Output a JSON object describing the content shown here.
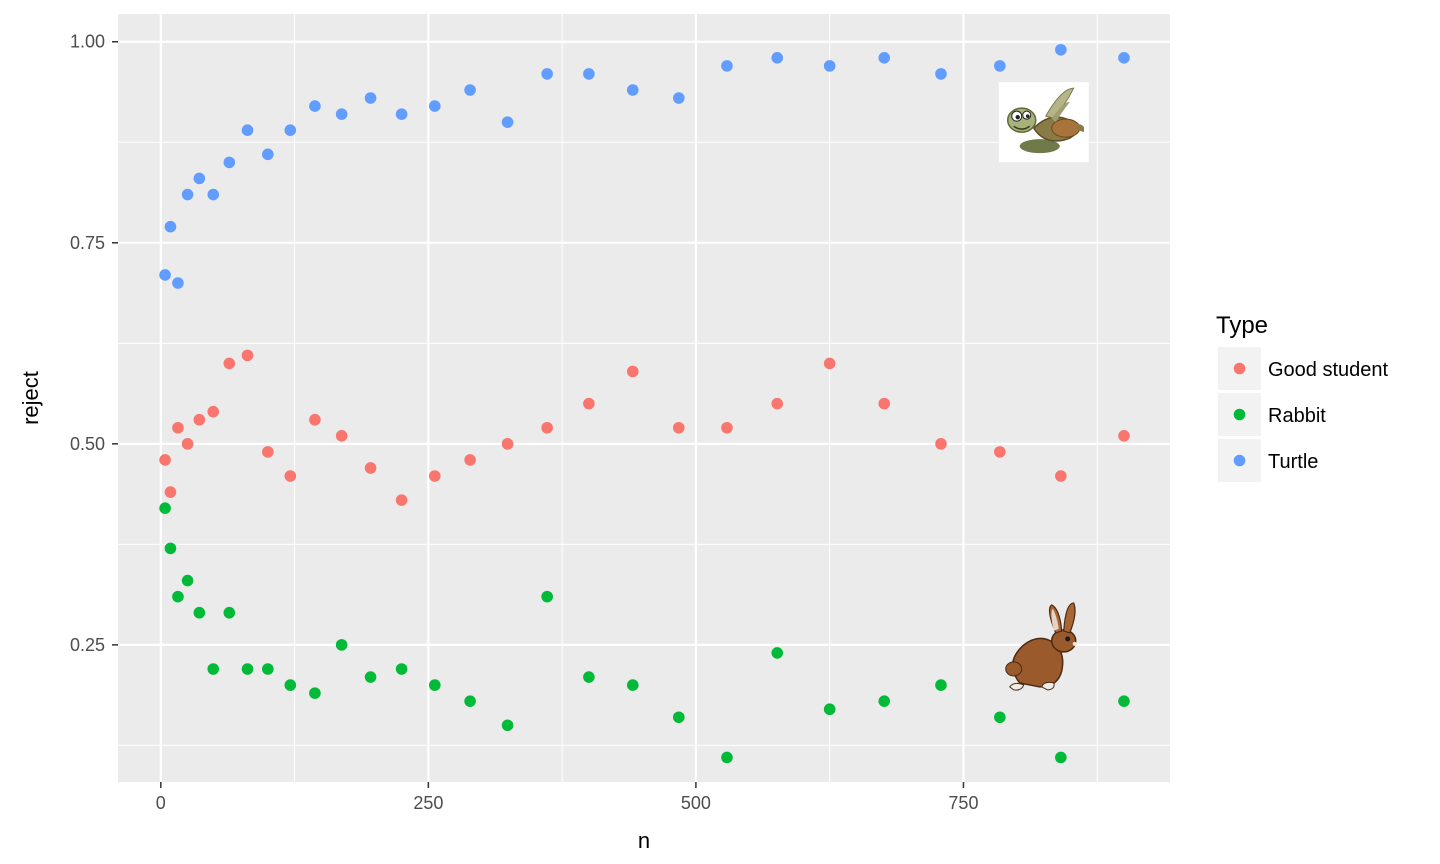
{
  "chart_data": {
    "type": "scatter",
    "xlabel": "n",
    "ylabel": "reject",
    "xlim": [
      -40,
      943
    ],
    "ylim": [
      0.0795,
      1.0345
    ],
    "x_ticks": [
      0,
      250,
      500,
      750
    ],
    "x_tick_labels": [
      "0",
      "250",
      "500",
      "750"
    ],
    "y_ticks": [
      0.25,
      0.5,
      0.75,
      1.0
    ],
    "y_tick_labels": [
      "0.25",
      "0.50",
      "0.75",
      "1.00"
    ],
    "grid": true,
    "legend": {
      "title": "Type",
      "position": "right"
    },
    "series": [
      {
        "name": "Good student",
        "color": "#F8766D",
        "points": [
          [
            4,
            0.48
          ],
          [
            9,
            0.44
          ],
          [
            16,
            0.52
          ],
          [
            25,
            0.5
          ],
          [
            36,
            0.53
          ],
          [
            49,
            0.54
          ],
          [
            64,
            0.6
          ],
          [
            81,
            0.61
          ],
          [
            100,
            0.49
          ],
          [
            121,
            0.46
          ],
          [
            144,
            0.53
          ],
          [
            169,
            0.51
          ],
          [
            196,
            0.47
          ],
          [
            225,
            0.43
          ],
          [
            256,
            0.46
          ],
          [
            289,
            0.48
          ],
          [
            324,
            0.5
          ],
          [
            361,
            0.52
          ],
          [
            400,
            0.55
          ],
          [
            441,
            0.59
          ],
          [
            484,
            0.52
          ],
          [
            529,
            0.52
          ],
          [
            576,
            0.55
          ],
          [
            625,
            0.6
          ],
          [
            676,
            0.55
          ],
          [
            729,
            0.5
          ],
          [
            784,
            0.49
          ],
          [
            841,
            0.46
          ],
          [
            900,
            0.51
          ]
        ]
      },
      {
        "name": "Rabbit",
        "color": "#00BA38",
        "points": [
          [
            4,
            0.42
          ],
          [
            9,
            0.37
          ],
          [
            16,
            0.31
          ],
          [
            25,
            0.33
          ],
          [
            36,
            0.29
          ],
          [
            49,
            0.22
          ],
          [
            64,
            0.29
          ],
          [
            81,
            0.22
          ],
          [
            100,
            0.22
          ],
          [
            121,
            0.2
          ],
          [
            144,
            0.19
          ],
          [
            169,
            0.25
          ],
          [
            196,
            0.21
          ],
          [
            225,
            0.22
          ],
          [
            256,
            0.2
          ],
          [
            289,
            0.18
          ],
          [
            324,
            0.15
          ],
          [
            361,
            0.31
          ],
          [
            400,
            0.21
          ],
          [
            441,
            0.2
          ],
          [
            484,
            0.16
          ],
          [
            529,
            0.11
          ],
          [
            576,
            0.24
          ],
          [
            625,
            0.17
          ],
          [
            676,
            0.18
          ],
          [
            729,
            0.2
          ],
          [
            784,
            0.16
          ],
          [
            841,
            0.11
          ],
          [
            900,
            0.18
          ]
        ]
      },
      {
        "name": "Turtle",
        "color": "#619CFF",
        "points": [
          [
            4,
            0.71
          ],
          [
            9,
            0.77
          ],
          [
            16,
            0.7
          ],
          [
            25,
            0.81
          ],
          [
            36,
            0.83
          ],
          [
            49,
            0.81
          ],
          [
            64,
            0.85
          ],
          [
            81,
            0.89
          ],
          [
            100,
            0.86
          ],
          [
            121,
            0.89
          ],
          [
            144,
            0.92
          ],
          [
            169,
            0.91
          ],
          [
            196,
            0.93
          ],
          [
            225,
            0.91
          ],
          [
            256,
            0.92
          ],
          [
            289,
            0.94
          ],
          [
            324,
            0.9
          ],
          [
            361,
            0.96
          ],
          [
            400,
            0.96
          ],
          [
            441,
            0.94
          ],
          [
            484,
            0.93
          ],
          [
            529,
            0.97
          ],
          [
            576,
            0.98
          ],
          [
            625,
            0.97
          ],
          [
            676,
            0.98
          ],
          [
            729,
            0.96
          ],
          [
            784,
            0.97
          ],
          [
            841,
            0.99
          ],
          [
            900,
            0.98
          ]
        ]
      }
    ],
    "annotations": [
      {
        "type": "image",
        "depicts": "cartoon-sea-turtle",
        "x": 825,
        "y": 0.9
      },
      {
        "type": "image",
        "depicts": "cartoon-brown-rabbit",
        "x": 825,
        "y": 0.24
      }
    ]
  }
}
